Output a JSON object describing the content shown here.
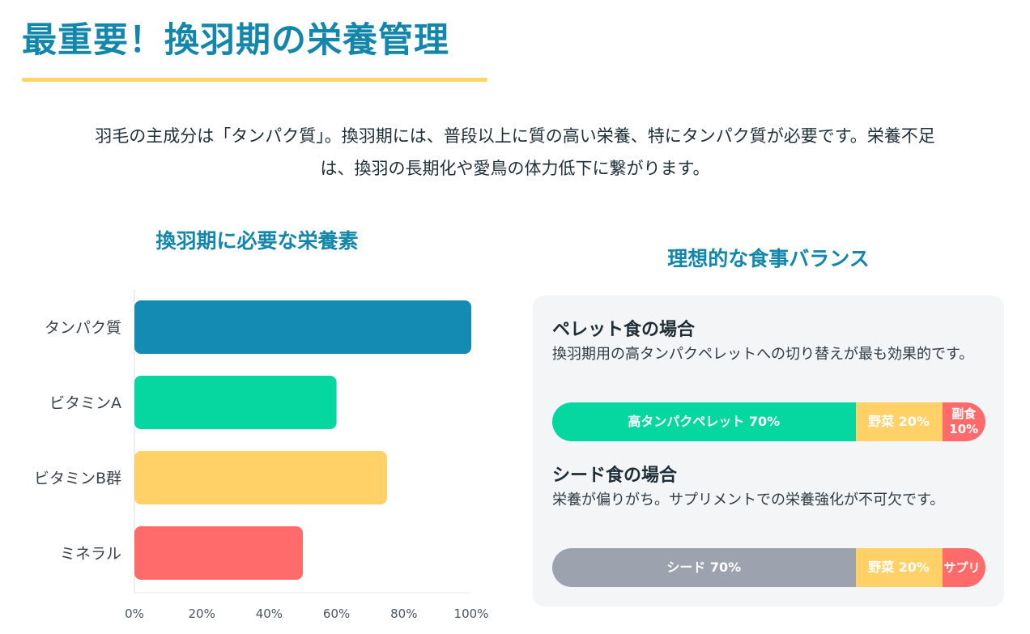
{
  "page": {
    "title": "最重要！換羽期の栄養管理",
    "intro_line1": "羽毛の主成分は「タンパク質」。換羽期には、普段以上に質の高い栄養、特にタンパク質が必要です。栄養不足",
    "intro_line2": "は、換羽の長期化や愛鳥の体力低下に繋がります。"
  },
  "colors": {
    "accent": "#1386ab",
    "underline": "#ffd56b",
    "blue": "#138bb2",
    "green": "#06d6a0",
    "yellow": "#ffd166",
    "red": "#ff6b6b",
    "gray": "#9ca3af"
  },
  "chart_data": {
    "type": "bar",
    "orientation": "horizontal",
    "title": "換羽期に必要な栄養素",
    "categories": [
      "タンパク質",
      "ビタミンA",
      "ビタミンB群",
      "ミネラル"
    ],
    "values": [
      100,
      60,
      75,
      50
    ],
    "bar_colors": [
      "#138bb2",
      "#06d6a0",
      "#ffd166",
      "#ff6b6b"
    ],
    "xlim": [
      0,
      100
    ],
    "xticks": [
      "0%",
      "20%",
      "40%",
      "60%",
      "80%",
      "100%"
    ],
    "grid": false,
    "legend": "none"
  },
  "balance": {
    "title": "理想的な食事バランス",
    "diets": [
      {
        "title": "ペレット食の場合",
        "desc": "換羽期用の高タンパクペレットへの切り替えが最も効果的です。",
        "segments": [
          {
            "label": "高タンパクペレット 70%",
            "value": 70,
            "color": "#06d6a0"
          },
          {
            "label": "野菜 20%",
            "value": 20,
            "color": "#ffd166"
          },
          {
            "label": "副食 10%",
            "value": 10,
            "color": "#ff6b6b"
          }
        ]
      },
      {
        "title": "シード食の場合",
        "desc": "栄養が偏りがち。サプリメントでの栄養強化が不可欠です。",
        "segments": [
          {
            "label": "シード 70%",
            "value": 70,
            "color": "#9ca3af"
          },
          {
            "label": "野菜 20%",
            "value": 20,
            "color": "#ffd166"
          },
          {
            "label": "サプリ",
            "value": 10,
            "color": "#ff6b6b"
          }
        ]
      }
    ]
  }
}
